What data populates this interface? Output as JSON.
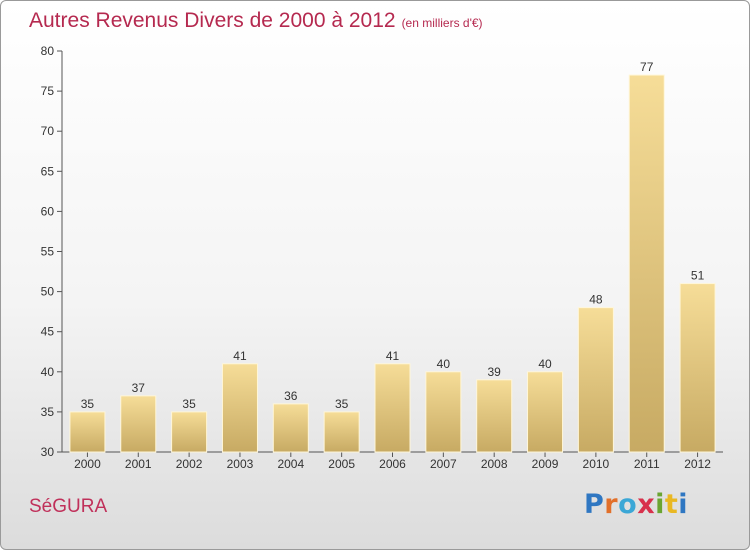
{
  "header": {
    "title": "Autres Revenus Divers de 2000 à 2012",
    "subtitle": "(en milliers d'€)"
  },
  "footer": {
    "place": "SéGURA",
    "logo": [
      "P",
      "r",
      "o",
      "x",
      "i",
      "t",
      "i"
    ]
  },
  "colors": {
    "title": "#b5294f",
    "bar_light": "#f6dd98",
    "bar_dark": "#c7aa63",
    "axis": "#555555"
  },
  "chart_data": {
    "type": "bar",
    "title": "Autres Revenus Divers de 2000 à 2012",
    "xlabel": "",
    "ylabel": "",
    "categories": [
      "2000",
      "2001",
      "2002",
      "2003",
      "2004",
      "2005",
      "2006",
      "2007",
      "2008",
      "2009",
      "2010",
      "2011",
      "2012"
    ],
    "values": [
      35,
      37,
      35,
      41,
      36,
      35,
      41,
      40,
      39,
      40,
      48,
      77,
      51
    ],
    "ylim": [
      30,
      80
    ],
    "yticks": [
      30,
      35,
      40,
      45,
      50,
      55,
      60,
      65,
      70,
      75,
      80
    ],
    "grid": false,
    "data_labels": true
  }
}
